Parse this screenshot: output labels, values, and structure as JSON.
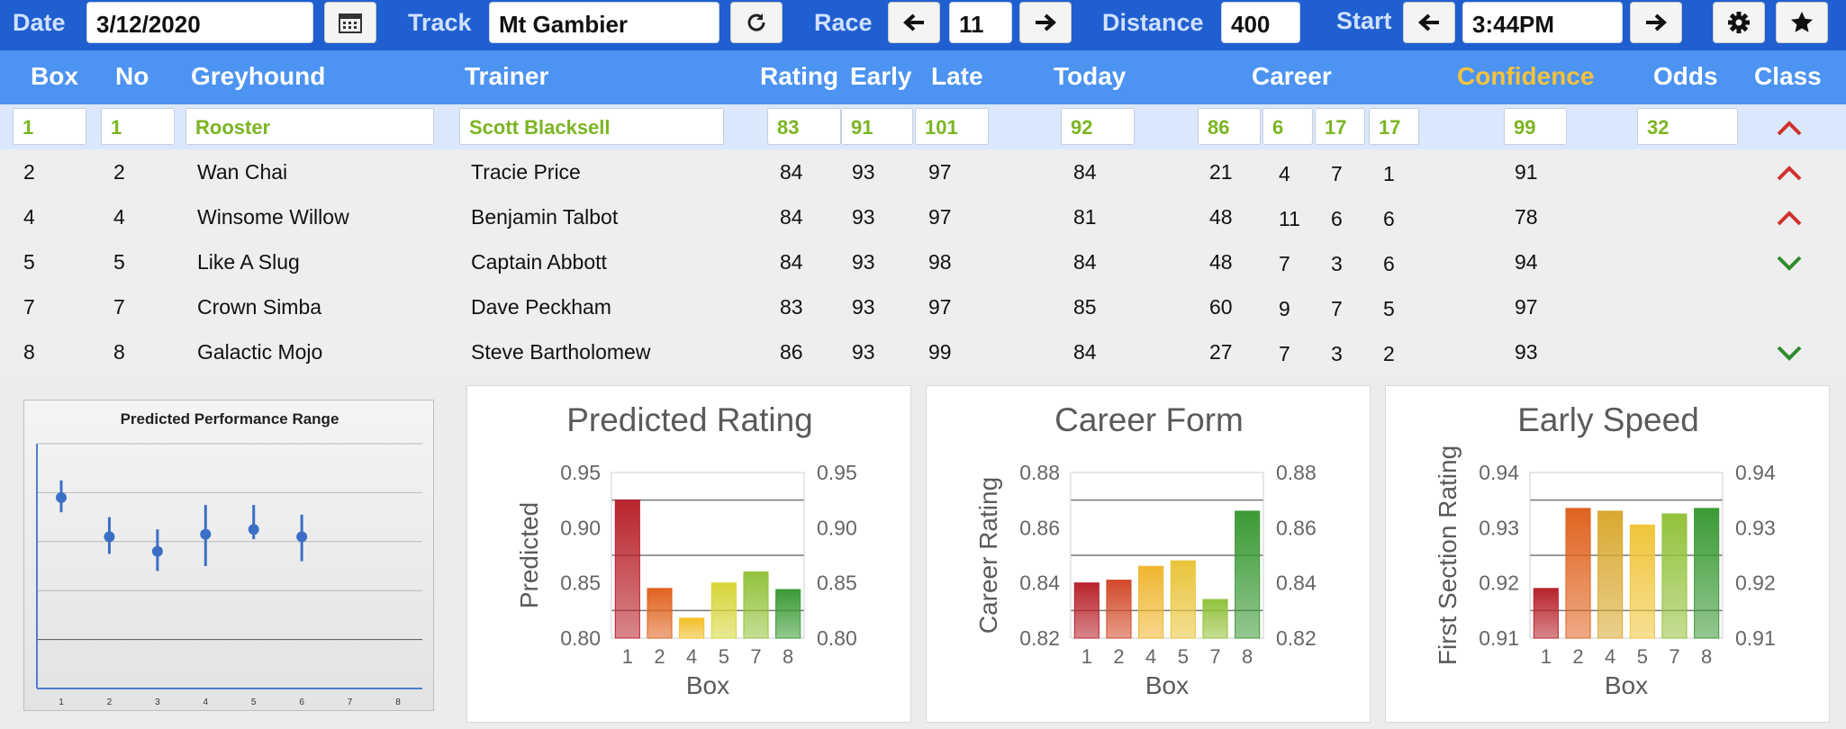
{
  "toolbar": {
    "date_label": "Date",
    "date_value": "3/12/2020",
    "track_label": "Track",
    "track_value": "Mt Gambier",
    "race_label": "Race",
    "race_value": "11",
    "distance_label": "Distance",
    "distance_value": "400",
    "start_label": "Start",
    "start_value": "3:44PM",
    "icons": [
      "calendar-icon",
      "refresh-icon",
      "arrow-left-icon",
      "arrow-right-icon",
      "gear-icon",
      "star-icon"
    ]
  },
  "columns": {
    "box": "Box",
    "no": "No",
    "greyhound": "Greyhound",
    "trainer": "Trainer",
    "rating": "Rating",
    "early": "Early",
    "late": "Late",
    "today": "Today",
    "career": "Career",
    "confidence": "Confidence",
    "odds": "Odds",
    "class": "Class"
  },
  "selected": {
    "box": "1",
    "no": "1",
    "greyhound": "Rooster",
    "trainer": "Scott Blacksell",
    "rating": "83",
    "early": "91",
    "late": "101",
    "today": "92",
    "career": [
      "86",
      "6",
      "17",
      "17"
    ],
    "confidence": "99",
    "odds": "32",
    "class": "up"
  },
  "rows": [
    {
      "box": "2",
      "no": "2",
      "greyhound": "Wan Chai",
      "trainer": "Tracie Price",
      "rating": "84",
      "early": "93",
      "late": "97",
      "today": "84",
      "career": [
        "21",
        "4",
        "7",
        "1"
      ],
      "confidence": "91",
      "class": "up"
    },
    {
      "box": "4",
      "no": "4",
      "greyhound": "Winsome Willow",
      "trainer": "Benjamin Talbot",
      "rating": "84",
      "early": "93",
      "late": "97",
      "today": "81",
      "career": [
        "48",
        "11",
        "6",
        "6"
      ],
      "confidence": "78",
      "class": "up"
    },
    {
      "box": "5",
      "no": "5",
      "greyhound": "Like A Slug",
      "trainer": "Captain Abbott",
      "rating": "84",
      "early": "93",
      "late": "98",
      "today": "84",
      "career": [
        "48",
        "7",
        "3",
        "6"
      ],
      "confidence": "94",
      "class": "down"
    },
    {
      "box": "7",
      "no": "7",
      "greyhound": "Crown Simba",
      "trainer": "Dave Peckham",
      "rating": "83",
      "early": "93",
      "late": "97",
      "today": "85",
      "career": [
        "60",
        "9",
        "7",
        "5"
      ],
      "confidence": "97",
      "class": ""
    },
    {
      "box": "8",
      "no": "8",
      "greyhound": "Galactic Mojo",
      "trainer": "Steve Bartholomew",
      "rating": "86",
      "early": "93",
      "late": "99",
      "today": "84",
      "career": [
        "27",
        "7",
        "3",
        "2"
      ],
      "confidence": "93",
      "class": "down"
    }
  ],
  "colors": {
    "up": "#d0312d",
    "down": "#2e8b2e",
    "accent": "#1f5fd0",
    "header": "#4c93f2",
    "selected_text": "#7bb522",
    "confidence": "#f4c23c"
  },
  "chart_data": [
    {
      "type": "scatter",
      "title": "Predicted Performance Range",
      "x": [
        1,
        2,
        3,
        4,
        5,
        6
      ],
      "x_ticks": [
        "1",
        "2",
        "3",
        "4",
        "5",
        "6",
        "7",
        "8"
      ],
      "points": [
        0.78,
        0.62,
        0.56,
        0.63,
        0.65,
        0.62
      ],
      "low": [
        0.72,
        0.55,
        0.48,
        0.5,
        0.61,
        0.52
      ],
      "high": [
        0.85,
        0.7,
        0.65,
        0.75,
        0.75,
        0.71
      ],
      "ylim": [
        0,
        1
      ],
      "grid": true
    },
    {
      "type": "bar",
      "title": "Predicted Rating",
      "xlabel": "Box",
      "ylabel": "Predicted",
      "categories": [
        "1",
        "2",
        "4",
        "5",
        "7",
        "8"
      ],
      "values": [
        0.925,
        0.845,
        0.818,
        0.85,
        0.86,
        0.844
      ],
      "ylim": [
        0.8,
        0.95
      ],
      "yticks": [
        "0.80",
        "0.85",
        "0.90",
        "0.95"
      ],
      "colors": [
        "#b8232b",
        "#e0631f",
        "#f2bd25",
        "#d6d63a",
        "#93c23c",
        "#3b9a35"
      ]
    },
    {
      "type": "bar",
      "title": "Career Form",
      "xlabel": "Box",
      "ylabel": "Career Rating",
      "categories": [
        "1",
        "2",
        "4",
        "5",
        "7",
        "8"
      ],
      "values": [
        0.84,
        0.841,
        0.846,
        0.848,
        0.834,
        0.866
      ],
      "ylim": [
        0.82,
        0.88
      ],
      "yticks": [
        "0.82",
        "0.84",
        "0.86",
        "0.88"
      ],
      "colors": [
        "#b8232b",
        "#d24a2a",
        "#f0b630",
        "#eac43a",
        "#93c23c",
        "#3b9a35"
      ]
    },
    {
      "type": "bar",
      "title": "Early Speed",
      "xlabel": "Box",
      "ylabel": "First Section Rating",
      "categories": [
        "1",
        "2",
        "4",
        "5",
        "7",
        "8"
      ],
      "values": [
        0.919,
        0.9335,
        0.933,
        0.9305,
        0.9325,
        0.9335
      ],
      "ylim": [
        0.91,
        0.94
      ],
      "yticks": [
        "0.91",
        "0.92",
        "0.93",
        "0.94"
      ],
      "colors": [
        "#b8232b",
        "#e0631f",
        "#d9a930",
        "#f0c53a",
        "#93c23c",
        "#3b9a35"
      ]
    }
  ]
}
